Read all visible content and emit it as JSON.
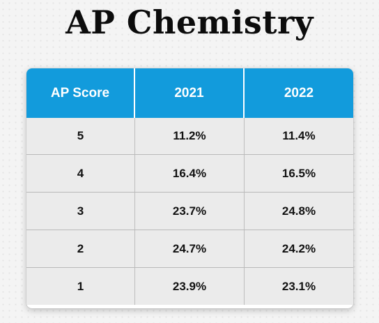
{
  "page": {
    "title": "AP Chemistry"
  },
  "table": {
    "headers": [
      "AP Score",
      "2021",
      "2022"
    ],
    "rows": [
      [
        "5",
        "11.2%",
        "11.4%"
      ],
      [
        "4",
        "16.4%",
        "16.5%"
      ],
      [
        "3",
        "23.7%",
        "24.8%"
      ],
      [
        "2",
        "24.7%",
        "24.2%"
      ],
      [
        "1",
        "23.9%",
        "23.1%"
      ]
    ]
  },
  "colors": {
    "header_background": "#129bdc",
    "header_text": "#ffffff",
    "row_background": "#ebebeb",
    "title_text": "#0c0c0c"
  }
}
